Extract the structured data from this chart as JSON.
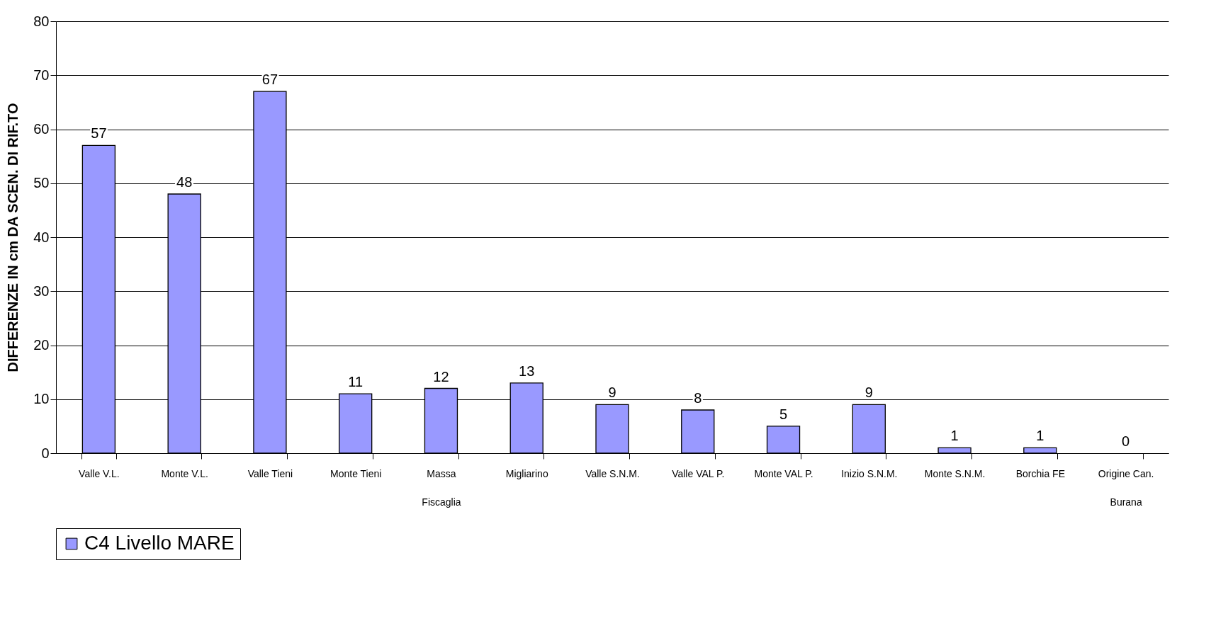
{
  "chart_data": {
    "type": "bar",
    "ylabel": "DIFFERENZE IN cm DA SCEN. DI RIF.TO",
    "categories": [
      "Valle V.L.",
      "Monte V.L.",
      "Valle Tieni",
      "Monte Tieni",
      "Massa\nFiscaglia",
      "Migliarino",
      "Valle S.N.M.",
      "Valle VAL P.",
      "Monte VAL P.",
      "Inizio S.N.M.",
      "Monte S.N.M.",
      "Borchia FE",
      "Origine Can.\nBurana"
    ],
    "series": [
      {
        "name": "C4 Livello MARE",
        "color": "#9999ff",
        "values": [
          57,
          48,
          67,
          11,
          12,
          13,
          9,
          8,
          5,
          9,
          1,
          1,
          0
        ]
      }
    ],
    "ylim": [
      0,
      80
    ],
    "yticks": [
      0,
      10,
      20,
      30,
      40,
      50,
      60,
      70,
      80
    ],
    "grid": "y",
    "legend": "bottom",
    "data_labels": true
  }
}
